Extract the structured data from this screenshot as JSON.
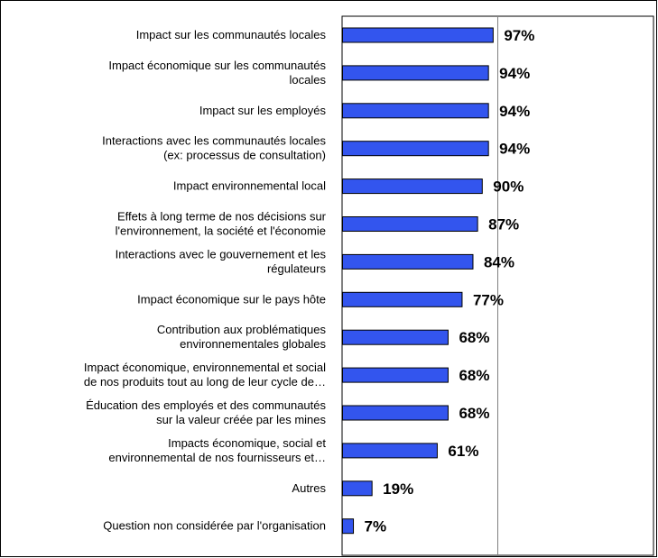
{
  "chart_data": {
    "type": "bar",
    "orientation": "horizontal",
    "categories": [
      [
        "Impact sur les communautés locales"
      ],
      [
        "Impact économique sur les communautés",
        "locales"
      ],
      [
        "Impact sur les employés"
      ],
      [
        "Interactions avec les communautés locales",
        "(ex: processus de consultation)"
      ],
      [
        "Impact environnemental local"
      ],
      [
        "Effets à long terme de nos décisions sur",
        "l'environnement, la société et l'économie"
      ],
      [
        "Interactions avec le gouvernement et les",
        "régulateurs"
      ],
      [
        "Impact économique sur le pays hôte"
      ],
      [
        "Contribution aux problématiques",
        "environnementales globales"
      ],
      [
        "Impact économique, environnemental et social",
        "de nos produits tout au long de leur cycle de…"
      ],
      [
        "Éducation des employés et des communautés",
        "sur la valeur créée par les mines"
      ],
      [
        "Impacts économique, social et",
        "environnemental de nos fournisseurs et…"
      ],
      [
        "Autres"
      ],
      [
        "Question non considérée par l'organisation"
      ]
    ],
    "values": [
      97,
      94,
      94,
      94,
      90,
      87,
      84,
      77,
      68,
      68,
      68,
      61,
      19,
      7
    ],
    "value_labels": [
      "97%",
      "94%",
      "94%",
      "94%",
      "90%",
      "87%",
      "84%",
      "77%",
      "68%",
      "68%",
      "68%",
      "61%",
      "19%",
      "7%"
    ],
    "xlim": [
      0,
      200
    ],
    "gridlines_x": [
      100
    ],
    "grid": false,
    "legend": "none",
    "colors": {
      "bar_fill": "#3355ee",
      "bar_stroke": "#000000",
      "axis": "#000000",
      "gridline": "#808080"
    }
  }
}
